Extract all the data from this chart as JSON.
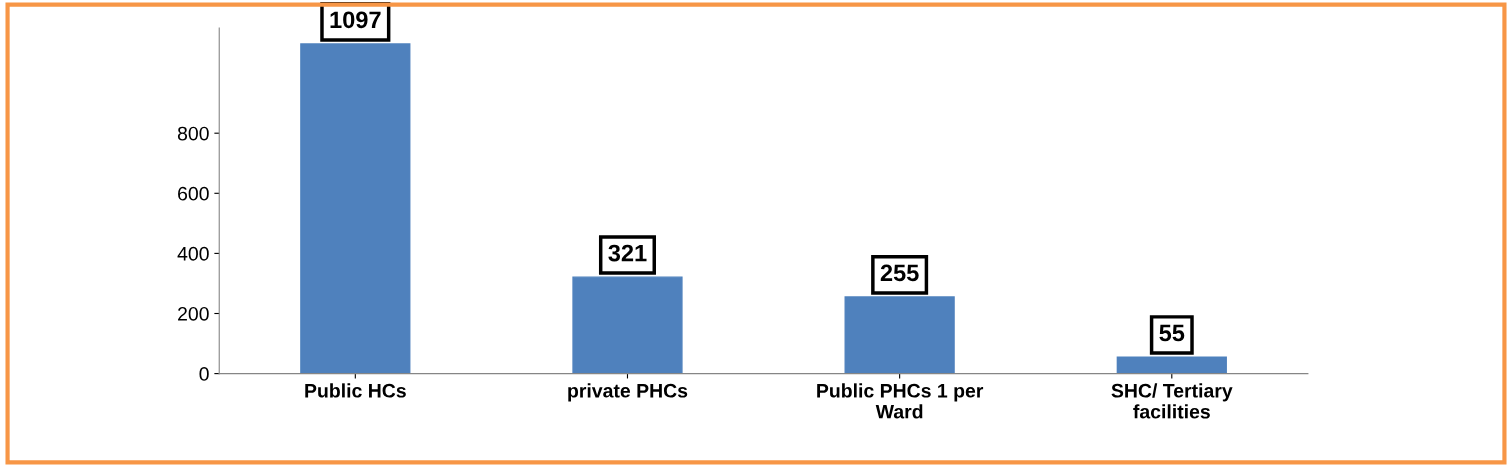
{
  "chart_data": {
    "type": "bar",
    "categories": [
      "Public HCs",
      "private PHCs",
      "Public PHCs 1 per\nWard",
      "SHC/ Tertiary\nfacilities"
    ],
    "values": [
      1097,
      321,
      255,
      55
    ],
    "color": "#4f81bd",
    "ylim": [
      0,
      1150
    ],
    "yticks": [
      0,
      200,
      400,
      600,
      800
    ],
    "data_labels": true,
    "grid": false,
    "legend": false
  }
}
